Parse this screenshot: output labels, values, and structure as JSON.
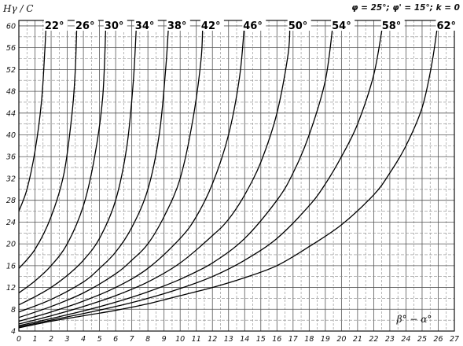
{
  "chart_data": {
    "type": "line",
    "ylabel": "Hγ / C",
    "xlabel": "β° − α°",
    "parameters": "φ = 25°; φ' = 15°; k = 0",
    "xlim": [
      0,
      27
    ],
    "ylim": [
      4,
      61
    ],
    "x_ticks": [
      "0",
      "1",
      "2",
      "3",
      "4",
      "5",
      "6",
      "7",
      "8",
      "9",
      "10",
      "11",
      "12",
      "13",
      "14",
      "15",
      "16",
      "17",
      "18",
      "19",
      "20",
      "21",
      "22",
      "23",
      "24",
      "25",
      "26",
      "27"
    ],
    "y_ticks": [
      "4",
      "8",
      "12",
      "16",
      "20",
      "24",
      "28",
      "32",
      "36",
      "40",
      "44",
      "48",
      "52",
      "56",
      "60"
    ],
    "grid": true,
    "series": [
      {
        "name": "22°",
        "points": [
          [
            0,
            26
          ],
          [
            0.5,
            30
          ],
          [
            1,
            37
          ],
          [
            1.4,
            46
          ],
          [
            1.6,
            55
          ],
          [
            1.7,
            61
          ]
        ]
      },
      {
        "name": "26°",
        "points": [
          [
            0,
            15.5
          ],
          [
            1,
            19
          ],
          [
            2,
            25
          ],
          [
            2.8,
            33
          ],
          [
            3.3,
            44
          ],
          [
            3.5,
            52
          ],
          [
            3.6,
            61
          ]
        ]
      },
      {
        "name": "30°",
        "points": [
          [
            0,
            11
          ],
          [
            1,
            13.2
          ],
          [
            2,
            16
          ],
          [
            3,
            20
          ],
          [
            4,
            27
          ],
          [
            4.7,
            36
          ],
          [
            5.2,
            47
          ],
          [
            5.4,
            61
          ]
        ]
      },
      {
        "name": "34°",
        "points": [
          [
            0,
            8.8
          ],
          [
            1,
            10.3
          ],
          [
            2,
            12
          ],
          [
            3,
            14.2
          ],
          [
            4,
            17
          ],
          [
            5,
            21
          ],
          [
            6,
            28
          ],
          [
            6.7,
            38
          ],
          [
            7.1,
            50
          ],
          [
            7.3,
            61
          ]
        ]
      },
      {
        "name": "38°",
        "points": [
          [
            0,
            7.5
          ],
          [
            2,
            9.8
          ],
          [
            4,
            13
          ],
          [
            5,
            15.5
          ],
          [
            6,
            18.5
          ],
          [
            7,
            23
          ],
          [
            8,
            30
          ],
          [
            8.7,
            40
          ],
          [
            9.1,
            52
          ],
          [
            9.3,
            61
          ]
        ]
      },
      {
        "name": "42°",
        "points": [
          [
            0,
            6.5
          ],
          [
            2,
            8.5
          ],
          [
            4,
            11
          ],
          [
            6,
            14.5
          ],
          [
            7,
            17
          ],
          [
            8,
            20
          ],
          [
            9,
            25
          ],
          [
            10,
            32
          ],
          [
            10.8,
            43
          ],
          [
            11.3,
            54
          ],
          [
            11.4,
            61
          ]
        ]
      },
      {
        "name": "46°",
        "points": [
          [
            0,
            5.8
          ],
          [
            2,
            7.5
          ],
          [
            4,
            9.5
          ],
          [
            6,
            12
          ],
          [
            8,
            15.5
          ],
          [
            10,
            21
          ],
          [
            11,
            25
          ],
          [
            12,
            31
          ],
          [
            13,
            40
          ],
          [
            13.7,
            51
          ],
          [
            14,
            61
          ]
        ]
      },
      {
        "name": "50°",
        "points": [
          [
            0,
            5.3
          ],
          [
            2,
            6.8
          ],
          [
            4,
            8.5
          ],
          [
            6,
            10.5
          ],
          [
            8,
            13
          ],
          [
            10,
            16.5
          ],
          [
            12,
            21.5
          ],
          [
            13,
            24.5
          ],
          [
            14,
            29
          ],
          [
            15,
            35
          ],
          [
            16,
            44
          ],
          [
            16.7,
            55
          ],
          [
            16.8,
            61
          ]
        ]
      },
      {
        "name": "54°",
        "points": [
          [
            0,
            5
          ],
          [
            2,
            6.3
          ],
          [
            4,
            7.7
          ],
          [
            6,
            9.3
          ],
          [
            8,
            11.2
          ],
          [
            10,
            13.5
          ],
          [
            12,
            16.5
          ],
          [
            14,
            21
          ],
          [
            16,
            28
          ],
          [
            17,
            33
          ],
          [
            18,
            40
          ],
          [
            19,
            50
          ],
          [
            19.5,
            61
          ]
        ]
      },
      {
        "name": "58°",
        "points": [
          [
            0,
            4.8
          ],
          [
            2,
            6
          ],
          [
            4,
            7.2
          ],
          [
            6,
            8.5
          ],
          [
            8,
            10
          ],
          [
            10,
            11.8
          ],
          [
            12,
            14
          ],
          [
            14,
            17
          ],
          [
            16,
            21
          ],
          [
            18,
            27
          ],
          [
            19,
            31
          ],
          [
            20,
            36
          ],
          [
            21,
            42
          ],
          [
            22,
            51
          ],
          [
            22.6,
            61
          ]
        ]
      },
      {
        "name": "62°",
        "points": [
          [
            0,
            4.6
          ],
          [
            2,
            5.8
          ],
          [
            4,
            6.8
          ],
          [
            6,
            7.8
          ],
          [
            8,
            9
          ],
          [
            10,
            10.5
          ],
          [
            12,
            12
          ],
          [
            14,
            13.8
          ],
          [
            16,
            16
          ],
          [
            18,
            19.5
          ],
          [
            20,
            23.5
          ],
          [
            22,
            29
          ],
          [
            23,
            33
          ],
          [
            24,
            38
          ],
          [
            25,
            45
          ],
          [
            25.6,
            53
          ],
          [
            26,
            61
          ]
        ]
      }
    ]
  }
}
